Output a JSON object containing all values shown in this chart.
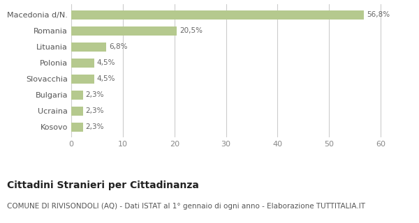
{
  "categories": [
    "Kosovo",
    "Ucraina",
    "Bulgaria",
    "Slovacchia",
    "Polonia",
    "Lituania",
    "Romania",
    "Macedonia d/N."
  ],
  "values": [
    2.3,
    2.3,
    2.3,
    4.5,
    4.5,
    6.8,
    20.5,
    56.8
  ],
  "labels": [
    "2,3%",
    "2,3%",
    "2,3%",
    "4,5%",
    "4,5%",
    "6,8%",
    "20,5%",
    "56,8%"
  ],
  "bar_color": "#b5c98e",
  "title": "Cittadini Stranieri per Cittadinanza",
  "subtitle": "COMUNE DI RIVISONDOLI (AQ) - Dati ISTAT al 1° gennaio di ogni anno - Elaborazione TUTTITALIA.IT",
  "xlim": [
    0,
    65
  ],
  "xticks": [
    0,
    10,
    20,
    30,
    40,
    50,
    60
  ],
  "background_color": "#ffffff",
  "grid_color": "#cccccc",
  "title_fontsize": 10,
  "subtitle_fontsize": 7.5,
  "label_fontsize": 7.5,
  "ytick_fontsize": 8,
  "xtick_fontsize": 8,
  "bar_height": 0.55
}
